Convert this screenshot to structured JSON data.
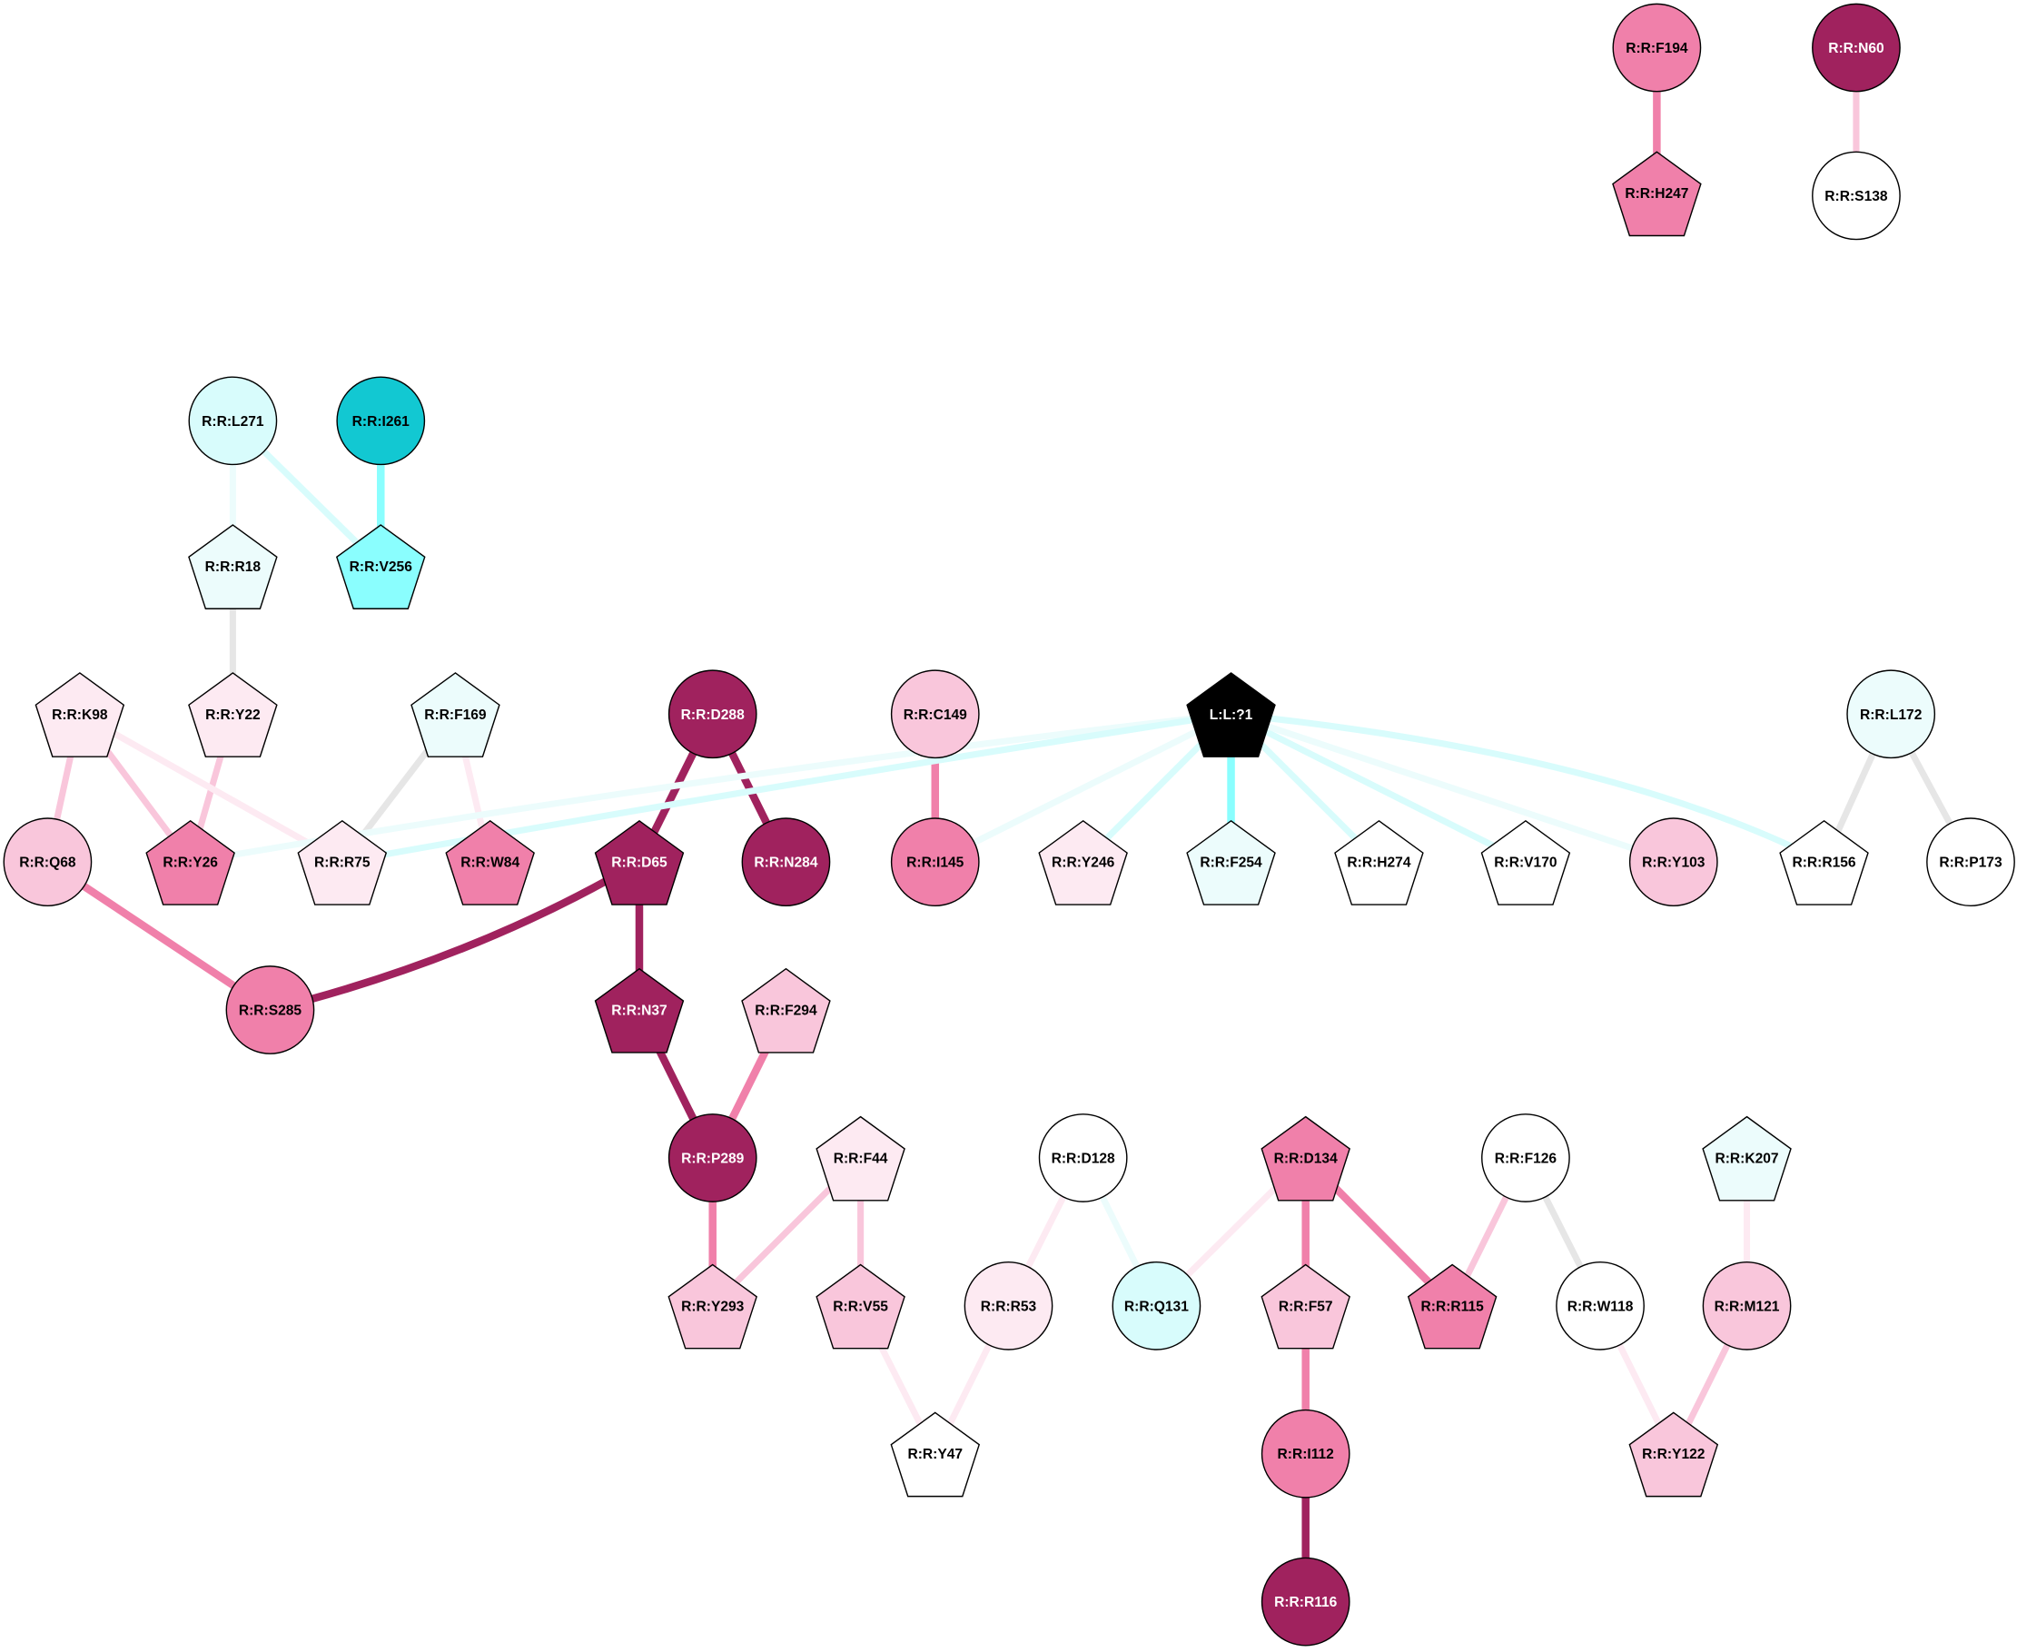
{
  "nodes": [
    {
      "label": "R:R:F194",
      "shape": "circle",
      "color": "#f080aa"
    },
    {
      "label": "R:R:H247",
      "shape": "pentagon",
      "color": "#f080aa"
    },
    {
      "label": "R:R:N60",
      "shape": "circle",
      "color": "#a0225e"
    },
    {
      "label": "R:R:S138",
      "shape": "circle",
      "color": "#ffffff"
    },
    {
      "label": "R:R:L271",
      "shape": "circle",
      "color": "#d8fcfc"
    },
    {
      "label": "R:R:I261",
      "shape": "circle",
      "color": "#12c8d2"
    },
    {
      "label": "R:R:R18",
      "shape": "pentagon",
      "color": "#ecfcfc"
    },
    {
      "label": "R:R:V256",
      "shape": "pentagon",
      "color": "#8afefe"
    },
    {
      "label": "R:R:K98",
      "shape": "pentagon",
      "color": "#fdeaf2"
    },
    {
      "label": "R:R:Y22",
      "shape": "pentagon",
      "color": "#fdeaf2"
    },
    {
      "label": "R:R:F169",
      "shape": "pentagon",
      "color": "#ecfcfc"
    },
    {
      "label": "R:R:D288",
      "shape": "circle",
      "color": "#a0225e"
    },
    {
      "label": "R:R:C149",
      "shape": "circle",
      "color": "#f9c6db"
    },
    {
      "label": "L:L:?1",
      "shape": "pentagon",
      "color": "#000000"
    },
    {
      "label": "R:R:L172",
      "shape": "circle",
      "color": "#ecfcfc"
    },
    {
      "label": "R:R:Q68",
      "shape": "circle",
      "color": "#f9c6db"
    },
    {
      "label": "R:R:Y26",
      "shape": "pentagon",
      "color": "#f080aa"
    },
    {
      "label": "R:R:R75",
      "shape": "pentagon",
      "color": "#fdeaf2"
    },
    {
      "label": "R:R:W84",
      "shape": "pentagon",
      "color": "#f080aa"
    },
    {
      "label": "R:R:D65",
      "shape": "pentagon",
      "color": "#a0225e"
    },
    {
      "label": "R:R:N284",
      "shape": "circle",
      "color": "#a0225e"
    },
    {
      "label": "R:R:I145",
      "shape": "circle",
      "color": "#f080aa"
    },
    {
      "label": "R:R:Y246",
      "shape": "pentagon",
      "color": "#fdeaf2"
    },
    {
      "label": "R:R:F254",
      "shape": "pentagon",
      "color": "#ecfcfc"
    },
    {
      "label": "R:R:H274",
      "shape": "pentagon",
      "color": "#ffffff"
    },
    {
      "label": "R:R:V170",
      "shape": "pentagon",
      "color": "#ffffff"
    },
    {
      "label": "R:R:Y103",
      "shape": "circle",
      "color": "#f9c6db"
    },
    {
      "label": "R:R:R156",
      "shape": "pentagon",
      "color": "#ffffff"
    },
    {
      "label": "R:R:P173",
      "shape": "circle",
      "color": "#ffffff"
    },
    {
      "label": "R:R:S285",
      "shape": "circle",
      "color": "#f080aa"
    },
    {
      "label": "R:R:N37",
      "shape": "pentagon",
      "color": "#a0225e"
    },
    {
      "label": "R:R:F294",
      "shape": "pentagon",
      "color": "#f9c6db"
    },
    {
      "label": "R:R:P289",
      "shape": "circle",
      "color": "#a0225e"
    },
    {
      "label": "R:R:F44",
      "shape": "pentagon",
      "color": "#fdeaf2"
    },
    {
      "label": "R:R:D128",
      "shape": "circle",
      "color": "#ffffff"
    },
    {
      "label": "R:R:D134",
      "shape": "pentagon",
      "color": "#f080aa"
    },
    {
      "label": "R:R:F126",
      "shape": "circle",
      "color": "#ffffff"
    },
    {
      "label": "R:R:K207",
      "shape": "pentagon",
      "color": "#ecfcfc"
    },
    {
      "label": "R:R:Y293",
      "shape": "pentagon",
      "color": "#f9c6db"
    },
    {
      "label": "R:R:V55",
      "shape": "pentagon",
      "color": "#f9c6db"
    },
    {
      "label": "R:R:R53",
      "shape": "circle",
      "color": "#fdeaf2"
    },
    {
      "label": "R:R:Q131",
      "shape": "circle",
      "color": "#d8fcfc"
    },
    {
      "label": "R:R:F57",
      "shape": "pentagon",
      "color": "#f9c6db"
    },
    {
      "label": "R:R:R115",
      "shape": "pentagon",
      "color": "#f080aa"
    },
    {
      "label": "R:R:W118",
      "shape": "circle",
      "color": "#ffffff"
    },
    {
      "label": "R:R:M121",
      "shape": "circle",
      "color": "#f9c6db"
    },
    {
      "label": "R:R:Y47",
      "shape": "pentagon",
      "color": "#ffffff"
    },
    {
      "label": "R:R:I112",
      "shape": "circle",
      "color": "#f080aa"
    },
    {
      "label": "R:R:Y122",
      "shape": "pentagon",
      "color": "#f9c6db"
    },
    {
      "label": "R:R:R116",
      "shape": "circle",
      "color": "#a0225e"
    }
  ],
  "edges": [
    {
      "source": 0,
      "target": 1,
      "color": "#f080aa"
    },
    {
      "source": 2,
      "target": 3,
      "color": "#f9c6db"
    },
    {
      "source": 4,
      "target": 6,
      "color": "#ecfcfc"
    },
    {
      "source": 4,
      "target": 7,
      "color": "#d8fcfc"
    },
    {
      "source": 5,
      "target": 7,
      "color": "#8afefe"
    },
    {
      "source": 6,
      "target": 9,
      "color": "#e6e6e6"
    },
    {
      "source": 9,
      "target": 16,
      "color": "#f9c6db"
    },
    {
      "source": 8,
      "target": 15,
      "color": "#f9c6db"
    },
    {
      "source": 8,
      "target": 16,
      "color": "#f9c6db"
    },
    {
      "source": 8,
      "target": 17,
      "color": "#fdeaf2"
    },
    {
      "source": 10,
      "target": 17,
      "color": "#e6e6e6"
    },
    {
      "source": 10,
      "target": 18,
      "color": "#fdeaf2"
    },
    {
      "source": 11,
      "target": 19,
      "color": "#a0225e"
    },
    {
      "source": 11,
      "target": 20,
      "color": "#a0225e"
    },
    {
      "source": 12,
      "target": 21,
      "color": "#f080aa"
    },
    {
      "source": 13,
      "target": 16,
      "color": "#ecfcfc"
    },
    {
      "source": 13,
      "target": 17,
      "color": "#d8fcfc"
    },
    {
      "source": 13,
      "target": 21,
      "color": "#ecfcfc"
    },
    {
      "source": 13,
      "target": 22,
      "color": "#d8fcfc"
    },
    {
      "source": 13,
      "target": 23,
      "color": "#8afefe"
    },
    {
      "source": 13,
      "target": 24,
      "color": "#d8fcfc"
    },
    {
      "source": 13,
      "target": 25,
      "color": "#d8fcfc"
    },
    {
      "source": 13,
      "target": 26,
      "color": "#ecfcfc"
    },
    {
      "source": 13,
      "target": 27,
      "color": "#d8fcfc"
    },
    {
      "source": 14,
      "target": 27,
      "color": "#e6e6e6"
    },
    {
      "source": 14,
      "target": 28,
      "color": "#e6e6e6"
    },
    {
      "source": 15,
      "target": 29,
      "color": "#f080aa"
    },
    {
      "source": 19,
      "target": 29,
      "color": "#a0225e"
    },
    {
      "source": 19,
      "target": 30,
      "color": "#a0225e"
    },
    {
      "source": 30,
      "target": 32,
      "color": "#a0225e"
    },
    {
      "source": 31,
      "target": 32,
      "color": "#f080aa"
    },
    {
      "source": 32,
      "target": 38,
      "color": "#f080aa"
    },
    {
      "source": 33,
      "target": 38,
      "color": "#f9c6db"
    },
    {
      "source": 33,
      "target": 39,
      "color": "#f9c6db"
    },
    {
      "source": 39,
      "target": 46,
      "color": "#fdeaf2"
    },
    {
      "source": 40,
      "target": 46,
      "color": "#fdeaf2"
    },
    {
      "source": 34,
      "target": 40,
      "color": "#fdeaf2"
    },
    {
      "source": 34,
      "target": 41,
      "color": "#ecfcfc"
    },
    {
      "source": 35,
      "target": 41,
      "color": "#fdeaf2"
    },
    {
      "source": 35,
      "target": 42,
      "color": "#f080aa"
    },
    {
      "source": 35,
      "target": 43,
      "color": "#f080aa"
    },
    {
      "source": 36,
      "target": 43,
      "color": "#f9c6db"
    },
    {
      "source": 36,
      "target": 44,
      "color": "#e6e6e6"
    },
    {
      "source": 42,
      "target": 47,
      "color": "#f080aa"
    },
    {
      "source": 47,
      "target": 49,
      "color": "#a0225e"
    },
    {
      "source": 44,
      "target": 48,
      "color": "#fdeaf2"
    },
    {
      "source": 45,
      "target": 48,
      "color": "#f9c6db"
    },
    {
      "source": 37,
      "target": 45,
      "color": "#fdeaf2"
    }
  ]
}
